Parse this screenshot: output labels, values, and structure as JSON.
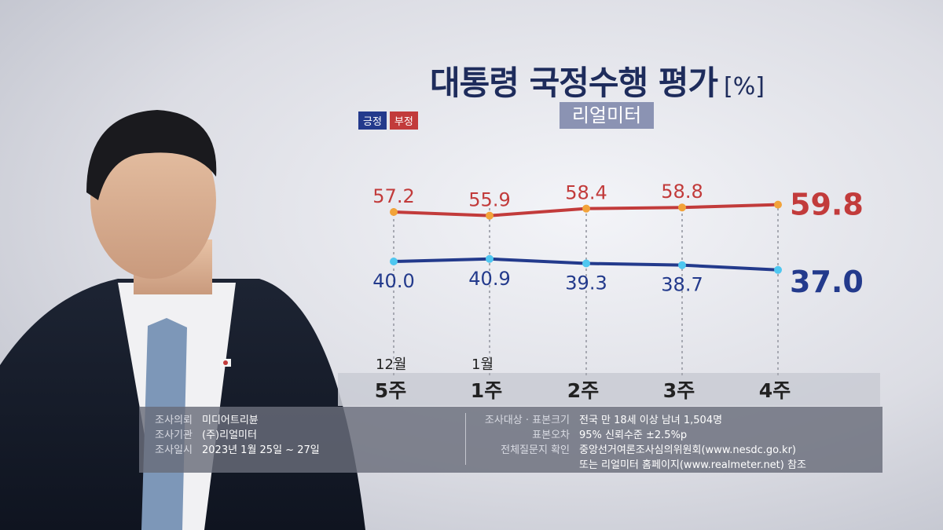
{
  "title": "대통령 국정수행 평가",
  "unit": "[%]",
  "source_badge": "리얼미터",
  "legend": {
    "positive": "긍정",
    "negative": "부정"
  },
  "colors": {
    "positive": "#233a8c",
    "negative": "#c23b3b",
    "pos_dot": "#4fc7f0",
    "neg_dot": "#f2a33a"
  },
  "chart_data": {
    "type": "line",
    "x": [
      "5주",
      "1주",
      "2주",
      "3주",
      "4주"
    ],
    "month_labels": [
      "12월",
      "1월",
      "",
      "",
      ""
    ],
    "series": [
      {
        "name": "긍정",
        "values": [
          40.0,
          40.9,
          39.3,
          38.7,
          37.0
        ],
        "labels": [
          "40.0",
          "40.9",
          "39.3",
          "38.7",
          "37.0"
        ]
      },
      {
        "name": "부정",
        "values": [
          57.2,
          55.9,
          58.4,
          58.8,
          59.8
        ],
        "labels": [
          "57.2",
          "55.9",
          "58.4",
          "58.8",
          "59.8"
        ]
      }
    ]
  },
  "survey": {
    "left": [
      {
        "label": "조사의뢰",
        "value": "미디어트리뷴"
      },
      {
        "label": "조사기관",
        "value": "(주)리얼미터"
      },
      {
        "label": "조사일시",
        "value": "2023년 1월 25일 ~ 27일"
      }
    ],
    "right": [
      {
        "label": "조사대상 · 표본크기",
        "value": "전국 만 18세 이상 남녀 1,504명"
      },
      {
        "label": "표본오차",
        "value": "95% 신뢰수준 ±2.5%p"
      },
      {
        "label": "전체질문지 확인",
        "value": "중앙선거여론조사심의위원회(www.nesdc.go.kr)"
      },
      {
        "label": "",
        "value": "또는 리얼미터 홈페이지(www.realmeter.net) 참조"
      }
    ]
  }
}
